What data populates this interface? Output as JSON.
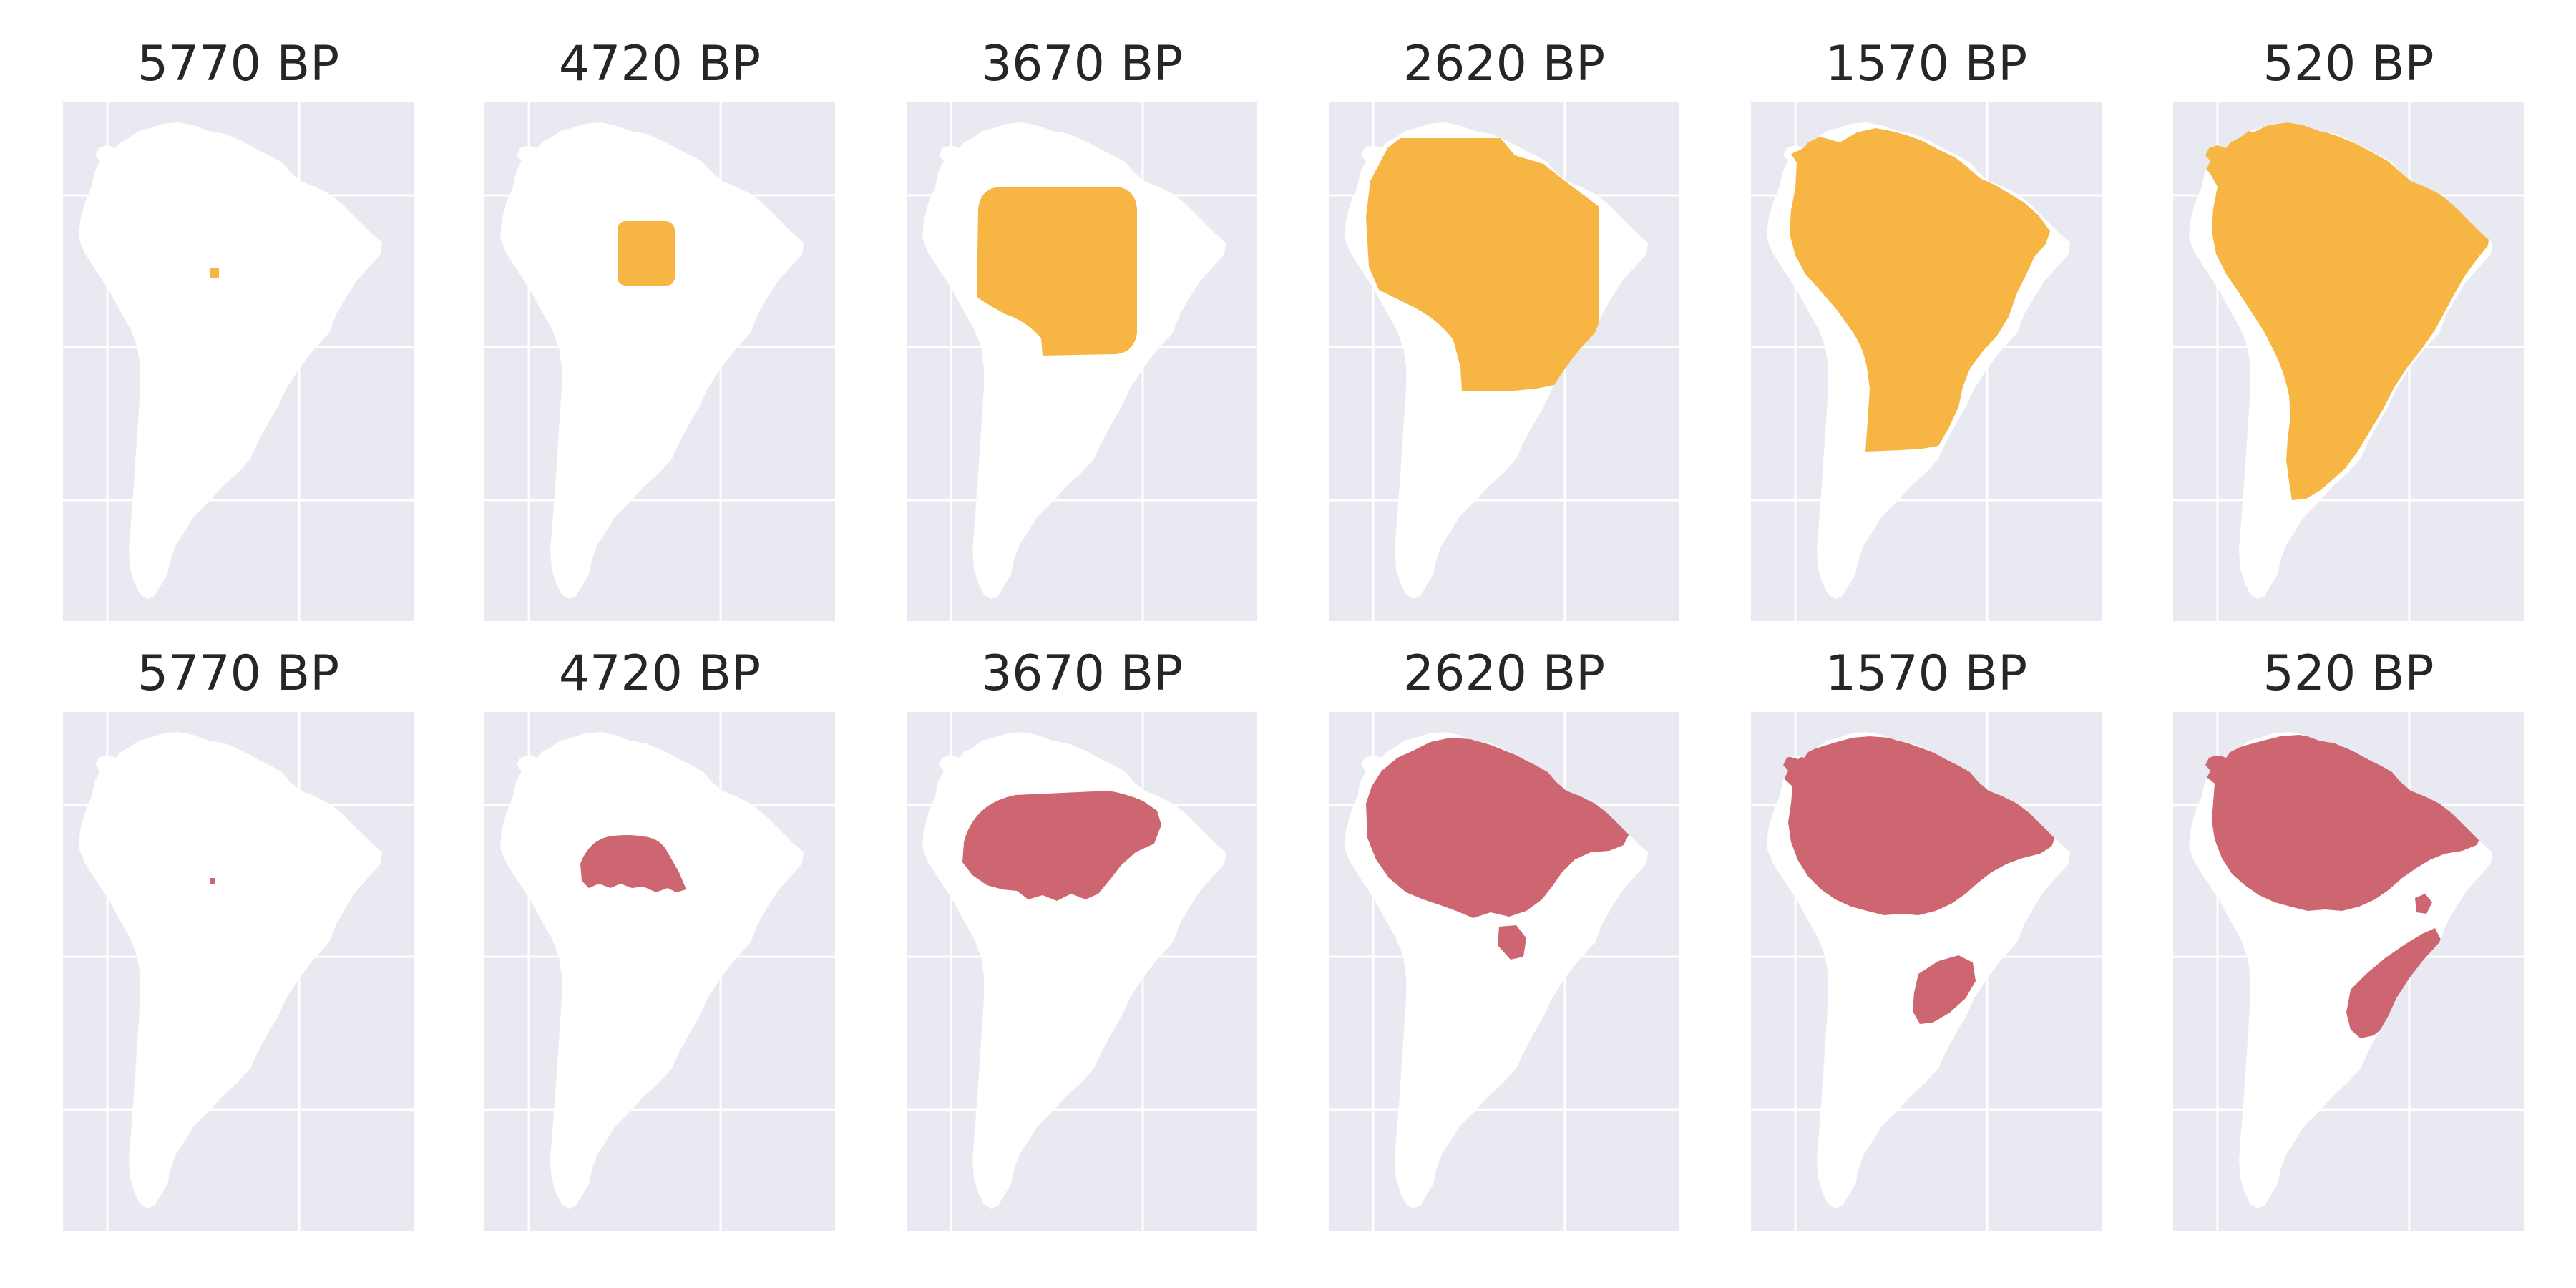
{
  "colors": {
    "panel_background": "#e9e9f1",
    "gridline": "#ffffff",
    "land": "#ffffff",
    "top_row_fill": "#f7b643",
    "bottom_row_fill": "#cd6670",
    "title_text": "#262626"
  },
  "rows": [
    {
      "row_name": "top-row",
      "fill_color_key": "top_row_fill",
      "panels": [
        {
          "title": "5770 BP",
          "stage": 0
        },
        {
          "title": "4720 BP",
          "stage": 1
        },
        {
          "title": "3670 BP",
          "stage": 2
        },
        {
          "title": "2620 BP",
          "stage": 3
        },
        {
          "title": "1570 BP",
          "stage": 4
        },
        {
          "title": "520 BP",
          "stage": 5
        }
      ]
    },
    {
      "row_name": "bottom-row",
      "fill_color_key": "bottom_row_fill",
      "panels": [
        {
          "title": "5770 BP",
          "stage": 0
        },
        {
          "title": "4720 BP",
          "stage": 1
        },
        {
          "title": "3670 BP",
          "stage": 2
        },
        {
          "title": "2620 BP",
          "stage": 3
        },
        {
          "title": "1570 BP",
          "stage": 4
        },
        {
          "title": "520 BP",
          "stage": 5
        }
      ]
    }
  ]
}
